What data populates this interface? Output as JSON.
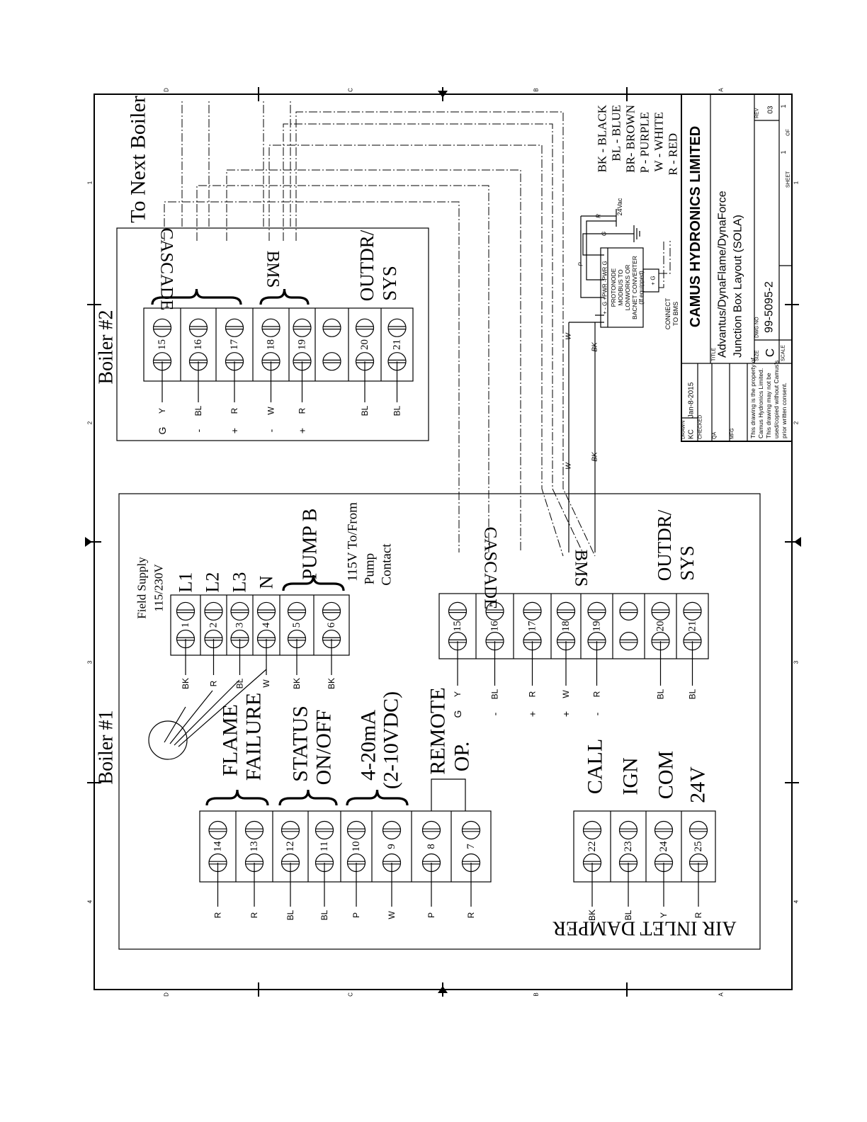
{
  "to_next_boiler": "To Next Boiler",
  "boiler2": {
    "title": "Boiler #2",
    "cascade": "CASCADE",
    "bms": "BMS",
    "outdr": "OUTDR/",
    "sys": "SYS",
    "terminals": [
      {
        "num": "15",
        "wire": "Y",
        "sign": "G"
      },
      {
        "num": "16",
        "wire": "BL",
        "sign": "-"
      },
      {
        "num": "17",
        "wire": "R",
        "sign": "+"
      },
      {
        "num": "18",
        "wire": "W",
        "sign": "-"
      },
      {
        "num": "19",
        "wire": "R",
        "sign": "+"
      },
      {
        "num": "",
        "wire": "",
        "sign": ""
      },
      {
        "num": "20",
        "wire": "BL",
        "sign": ""
      },
      {
        "num": "21",
        "wire": "BL",
        "sign": ""
      }
    ]
  },
  "boiler1": {
    "title": "Boiler #1",
    "field_supply": "Field Supply",
    "voltage": "115/230V",
    "l1": "L1",
    "l2": "L2",
    "l3": "L3",
    "n": "N",
    "pump_b": "PUMP B",
    "pump_note": [
      "115V To/From",
      "Pump",
      "Contact"
    ],
    "cascade": "CASCADE",
    "bms": "BMS",
    "outdr": "OUTDR/",
    "sys": "SYS",
    "flame": "FLAME",
    "failure": "FAILURE",
    "status": "STATUS",
    "onoff": "ON/OFF",
    "ma": "4-20mA",
    "vdc": "(2-10VDC)",
    "remote": "REMOTE",
    "op": "OP.",
    "call": "CALL",
    "ign": "IGN",
    "com": "COM",
    "v24": "24V",
    "air_inlet_damper": "AIR INLET DAMPER",
    "pump_terminals": [
      {
        "num": "1",
        "wire": "BK"
      },
      {
        "num": "2",
        "wire": "R"
      },
      {
        "num": "3",
        "wire": "BL"
      },
      {
        "num": "4",
        "wire": "W"
      },
      {
        "num": "5",
        "wire": "BK"
      },
      {
        "num": "6",
        "wire": "BK"
      }
    ],
    "comm_terminals": [
      {
        "num": "15",
        "wire": "Y",
        "sign": "G"
      },
      {
        "num": "16",
        "wire": "BL",
        "sign": "-"
      },
      {
        "num": "17",
        "wire": "R",
        "sign": "+"
      },
      {
        "num": "18",
        "wire": "W",
        "sign": "+"
      },
      {
        "num": "19",
        "wire": "R",
        "sign": "-"
      },
      {
        "num": "",
        "wire": "",
        "sign": ""
      },
      {
        "num": "20",
        "wire": "BL",
        "sign": ""
      },
      {
        "num": "21",
        "wire": "BL",
        "sign": ""
      }
    ],
    "control_terminals": [
      {
        "num": "14",
        "wire": "R"
      },
      {
        "num": "13",
        "wire": "R"
      },
      {
        "num": "12",
        "wire": "BL"
      },
      {
        "num": "11",
        "wire": "BL"
      },
      {
        "num": "10",
        "wire": "P"
      },
      {
        "num": "9",
        "wire": "W"
      },
      {
        "num": "8",
        "wire": "P"
      },
      {
        "num": "7",
        "wire": "R"
      }
    ],
    "damper_terminals": [
      {
        "num": "22",
        "wire": "BK"
      },
      {
        "num": "23",
        "wire": "BL"
      },
      {
        "num": "24",
        "wire": "Y"
      },
      {
        "num": "25",
        "wire": "R"
      }
    ]
  },
  "bms_wires": {
    "w": "W",
    "bk": "BK"
  },
  "protonode": {
    "pins": "+  -  G  +PWR  -PWR  G",
    "lines": [
      "PROTONODE",
      "MODBUS TO",
      "LONWORKS OR",
      "BACNET CONVERTER",
      "(If equipped)"
    ],
    "sub_pins": "+   G",
    "connect": [
      "CONNECT",
      "TO BMS"
    ],
    "wire_p": "P",
    "wire_g": "G",
    "wire_r": "R",
    "supply": "24Vac"
  },
  "legend": [
    "BK - BLACK",
    "BL - BLUE",
    "BR-  BROWN",
    "P - PURPLE",
    "W - WHITE",
    "R - RED"
  ],
  "title_block": {
    "company": "CAMUS HYDRONICS LIMITED",
    "title_label": "TITLE",
    "title": [
      "Advantus/DynaFlame/DynaForce",
      "Junction Box Layout (SOLA)"
    ],
    "drawn_label": "DRAWN",
    "drawn": "KC",
    "date": "Jan-8-2015",
    "checked_label": "CHECKED",
    "qa_label": "QA",
    "mfg_label": "MFG",
    "disclaimer": [
      "This drawing is the property of",
      "Camus Hydronics Limited.",
      "This drawing may not be",
      "used/copied without Camus's",
      "prior written consent."
    ],
    "size_label": "SIZE",
    "size": "C",
    "dwg_label": "DWG NO",
    "dwg": "99-5095-2",
    "rev_label": "REV",
    "rev": "03",
    "scale_label": "SCALE",
    "sheet_label": "SHEET",
    "sheet": "1",
    "of_label": "OF",
    "of": "1"
  },
  "zones": {
    "letters": [
      "D",
      "C",
      "B",
      "A"
    ],
    "numbers": [
      "1",
      "2",
      "3",
      "4"
    ]
  }
}
